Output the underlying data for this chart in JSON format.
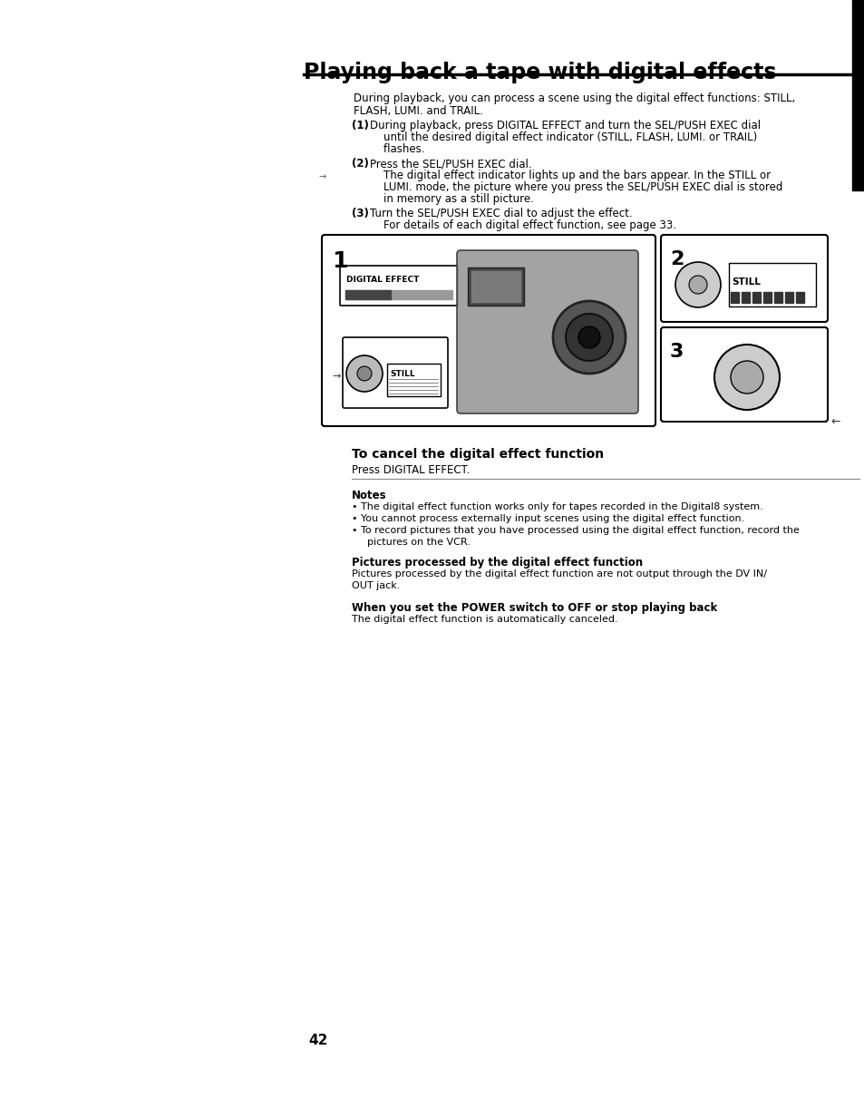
{
  "title": "Playing back a tape with digital effects",
  "page_number": "42",
  "background_color": "#ffffff",
  "intro_line1": "During playback, you can process a scene using the digital effect functions: STILL,",
  "intro_line2": "FLASH, LUMI. and TRAIL.",
  "step1_num": "(1)",
  "step1_line1": "During playback, press DIGITAL EFFECT and turn the SEL/PUSH EXEC dial",
  "step1_line2": "    until the desired digital effect indicator (STILL, FLASH, LUMI. or TRAIL)",
  "step1_line3": "    flashes.",
  "step2_num": "(2)",
  "step2_line1": "Press the SEL/PUSH EXEC dial.",
  "step2_line2": "    The digital effect indicator lights up and the bars appear. In the STILL or",
  "step2_line3": "    LUMI. mode, the picture where you press the SEL/PUSH EXEC dial is stored",
  "step2_line4": "    in memory as a still picture.",
  "step3_num": "(3)",
  "step3_line1": "Turn the SEL/PUSH EXEC dial to adjust the effect.",
  "step3_line2": "    For details of each digital effect function, see page 33.",
  "cancel_heading": "To cancel the digital effect function",
  "cancel_text": "Press DIGITAL EFFECT.",
  "notes_heading": "Notes",
  "note1": "• The digital effect function works only for tapes recorded in the Digital8 system.",
  "note2": "• You cannot process externally input scenes using the digital effect function.",
  "note3a": "• To record pictures that you have processed using the digital effect function, record the",
  "note3b": "  pictures on the VCR.",
  "pictures_heading": "Pictures processed by the digital effect function",
  "pictures_line1": "Pictures processed by the digital effect function are not output through the DV IN/",
  "pictures_line2": "OUT jack.",
  "power_heading": "When you set the POWER switch to OFF or stop playing back",
  "power_text": "The digital effect function is automatically canceled."
}
